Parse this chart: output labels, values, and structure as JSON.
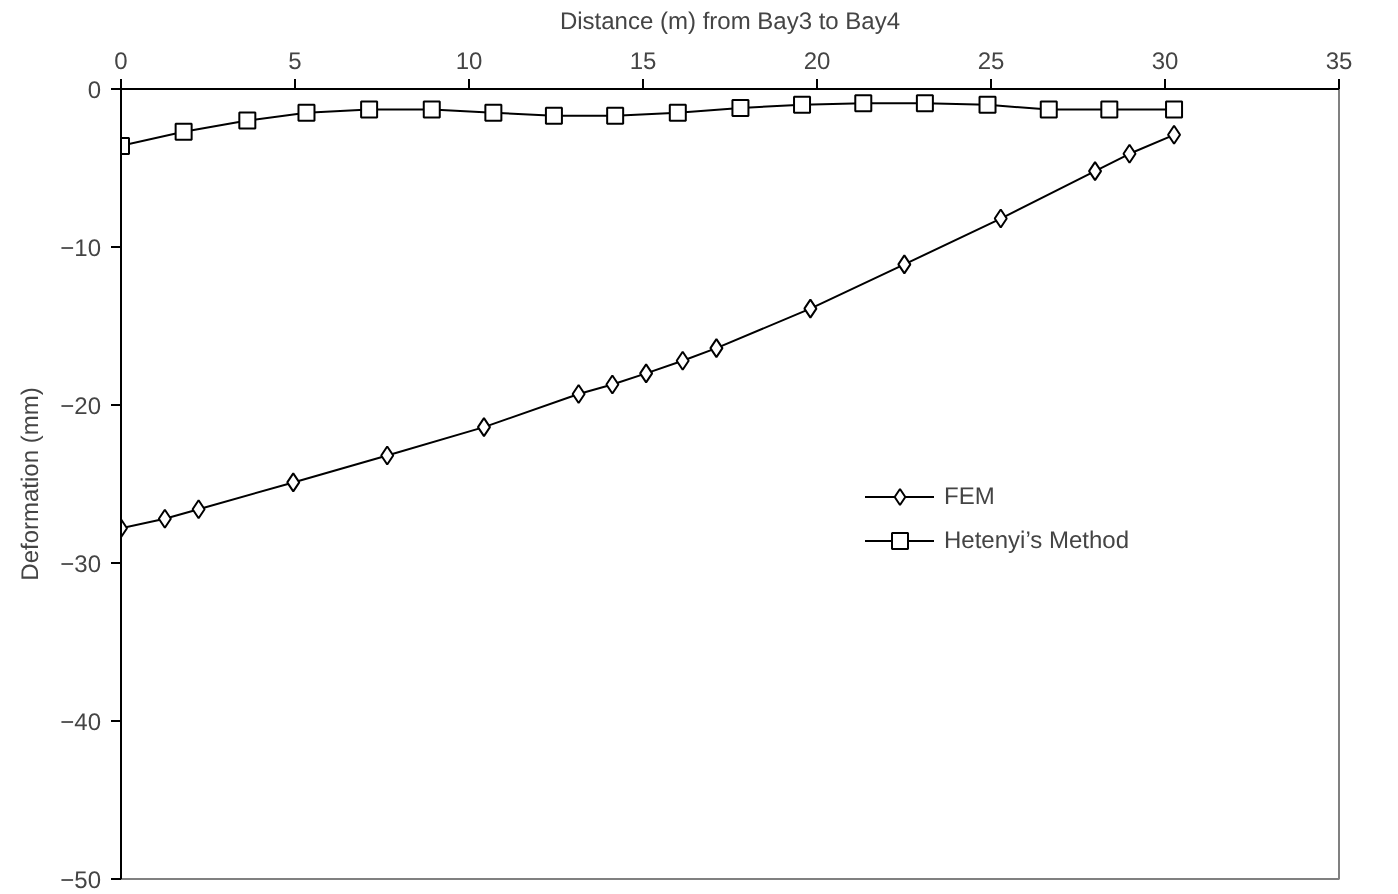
{
  "chart_data": {
    "type": "line",
    "xlabel": "Distance (m) from Bay3 to Bay4",
    "ylabel": "Deformation (mm)",
    "xlim": [
      0,
      35
    ],
    "xticks": [
      0,
      5,
      10,
      15,
      20,
      25,
      30,
      35
    ],
    "ylim": [
      -50,
      0
    ],
    "yticks": [
      -50,
      -40,
      -30,
      -20,
      -10,
      0
    ],
    "grid": false,
    "legend": "right",
    "line_style": "solid",
    "series": [
      {
        "name": "FEM",
        "color": "#000000",
        "marker": "diamond",
        "x": [
          0,
          1.26,
          2.23,
          4.95,
          7.65,
          10.43,
          13.15,
          14.12,
          15.09,
          16.14,
          17.11,
          19.81,
          22.51,
          25.28,
          27.99,
          28.98,
          30.26
        ],
        "values": [
          -27.8,
          -27.2,
          -26.6,
          -24.9,
          -23.2,
          -21.4,
          -19.3,
          -18.7,
          -18.0,
          -17.2,
          -16.4,
          -13.9,
          -11.1,
          -8.2,
          -5.2,
          -4.1,
          -2.9
        ]
      },
      {
        "name": "Hetenyi’s Method",
        "color": "#000000",
        "marker": "square",
        "x": [
          0,
          1.8,
          3.63,
          5.33,
          7.13,
          8.93,
          10.7,
          12.44,
          14.2,
          16.0,
          17.8,
          19.57,
          21.33,
          23.1,
          24.9,
          26.66,
          28.4,
          30.26
        ],
        "values": [
          -3.6,
          -2.7,
          -2.0,
          -1.5,
          -1.3,
          -1.3,
          -1.5,
          -1.7,
          -1.7,
          -1.5,
          -1.2,
          -1.0,
          -0.9,
          -0.9,
          -1.0,
          -1.3,
          -1.3,
          -1.3
        ]
      }
    ]
  }
}
